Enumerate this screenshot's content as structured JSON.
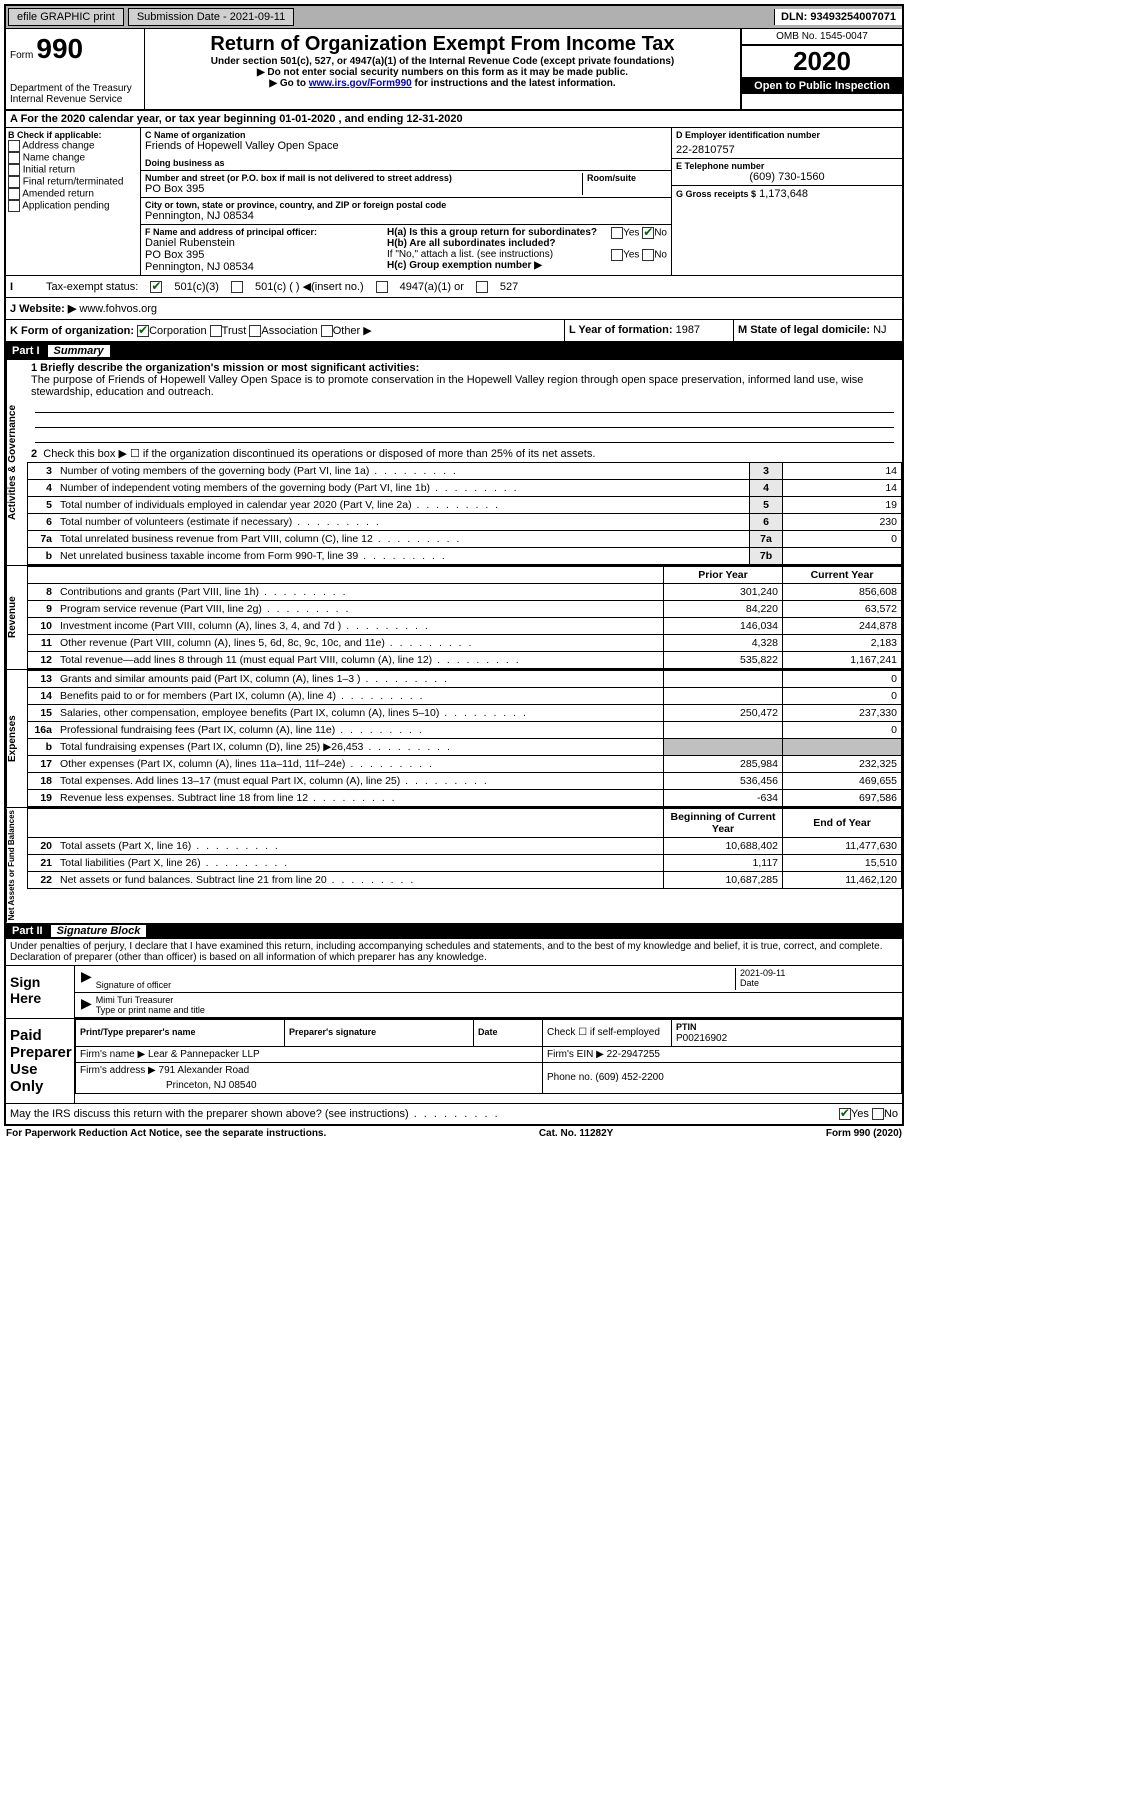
{
  "topbar": {
    "efile": "efile GRAPHIC print",
    "submission_label": "Submission Date - 2021-09-11",
    "dln": "DLN: 93493254007071"
  },
  "header": {
    "form_word": "Form",
    "form_num": "990",
    "dept": "Department of the Treasury",
    "irs": "Internal Revenue Service",
    "title": "Return of Organization Exempt From Income Tax",
    "sub1": "Under section 501(c), 527, or 4947(a)(1) of the Internal Revenue Code (except private foundations)",
    "sub2": "▶ Do not enter social security numbers on this form as it may be made public.",
    "sub3_pre": "▶ Go to ",
    "sub3_link": "www.irs.gov/Form990",
    "sub3_post": " for instructions and the latest information.",
    "omb": "OMB No. 1545-0047",
    "year": "2020",
    "open": "Open to Public Inspection"
  },
  "sectionA": "A For the 2020 calendar year, or tax year beginning 01-01-2020   , and ending 12-31-2020",
  "colB": {
    "title": "B Check if applicable:",
    "opts": [
      "Address change",
      "Name change",
      "Initial return",
      "Final return/terminated",
      "Amended return",
      "Application pending"
    ]
  },
  "colC": {
    "name_label": "C Name of organization",
    "name": "Friends of Hopewell Valley Open Space",
    "dba_label": "Doing business as",
    "addr_label": "Number and street (or P.O. box if mail is not delivered to street address)",
    "room_label": "Room/suite",
    "addr": "PO Box 395",
    "city_label": "City or town, state or province, country, and ZIP or foreign postal code",
    "city": "Pennington, NJ  08534",
    "f_label": "F Name and address of principal officer:",
    "f_name": "Daniel Rubenstein",
    "f_addr1": "PO Box 395",
    "f_addr2": "Pennington, NJ  08534"
  },
  "colD": {
    "d_label": "D Employer identification number",
    "ein": "22-2810757",
    "e_label": "E Telephone number",
    "phone": "(609) 730-1560",
    "g_label": "G Gross receipts $",
    "g_val": "1,173,648"
  },
  "H": {
    "ha": "H(a)  Is this a group return for subordinates?",
    "hb": "H(b)  Are all subordinates included?",
    "hb_note": "If \"No,\" attach a list. (see instructions)",
    "hc": "H(c)  Group exemption number ▶",
    "yes": "Yes",
    "no": "No"
  },
  "I": {
    "label": "Tax-exempt status:",
    "a": "501(c)(3)",
    "b": "501(c) (  ) ◀(insert no.)",
    "c": "4947(a)(1) or",
    "d": "527"
  },
  "J": {
    "label": "J   Website: ▶",
    "val": "www.fohvos.org"
  },
  "K": {
    "label": "K Form of organization:",
    "opts": [
      "Corporation",
      "Trust",
      "Association",
      "Other ▶"
    ]
  },
  "L": {
    "label": "L Year of formation:",
    "val": "1987"
  },
  "M": {
    "label": "M State of legal domicile:",
    "val": "NJ"
  },
  "part1": {
    "num": "Part I",
    "title": "Summary"
  },
  "summary": {
    "l1_label": "1  Briefly describe the organization's mission or most significant activities:",
    "l1_text": "The purpose of Friends of Hopewell Valley Open Space is to promote conservation in the Hopewell Valley region through open space preservation, informed land use, wise stewardship, education and outreach.",
    "l2": "Check this box ▶ ☐  if the organization discontinued its operations or disposed of more than 25% of its net assets.",
    "lines": [
      {
        "n": "3",
        "d": "Number of voting members of the governing body (Part VI, line 1a)",
        "b": "3",
        "v": "14"
      },
      {
        "n": "4",
        "d": "Number of independent voting members of the governing body (Part VI, line 1b)",
        "b": "4",
        "v": "14"
      },
      {
        "n": "5",
        "d": "Total number of individuals employed in calendar year 2020 (Part V, line 2a)",
        "b": "5",
        "v": "19"
      },
      {
        "n": "6",
        "d": "Total number of volunteers (estimate if necessary)",
        "b": "6",
        "v": "230"
      },
      {
        "n": "7a",
        "d": "Total unrelated business revenue from Part VIII, column (C), line 12",
        "b": "7a",
        "v": "0"
      },
      {
        "n": "b",
        "d": "Net unrelated business taxable income from Form 990-T, line 39",
        "b": "7b",
        "v": ""
      }
    ],
    "hdr_prior": "Prior Year",
    "hdr_curr": "Current Year",
    "revenue": [
      {
        "n": "8",
        "d": "Contributions and grants (Part VIII, line 1h)",
        "p": "301,240",
        "c": "856,608"
      },
      {
        "n": "9",
        "d": "Program service revenue (Part VIII, line 2g)",
        "p": "84,220",
        "c": "63,572"
      },
      {
        "n": "10",
        "d": "Investment income (Part VIII, column (A), lines 3, 4, and 7d )",
        "p": "146,034",
        "c": "244,878"
      },
      {
        "n": "11",
        "d": "Other revenue (Part VIII, column (A), lines 5, 6d, 8c, 9c, 10c, and 11e)",
        "p": "4,328",
        "c": "2,183"
      },
      {
        "n": "12",
        "d": "Total revenue—add lines 8 through 11 (must equal Part VIII, column (A), line 12)",
        "p": "535,822",
        "c": "1,167,241"
      }
    ],
    "expenses": [
      {
        "n": "13",
        "d": "Grants and similar amounts paid (Part IX, column (A), lines 1–3 )",
        "p": "",
        "c": "0"
      },
      {
        "n": "14",
        "d": "Benefits paid to or for members (Part IX, column (A), line 4)",
        "p": "",
        "c": "0"
      },
      {
        "n": "15",
        "d": "Salaries, other compensation, employee benefits (Part IX, column (A), lines 5–10)",
        "p": "250,472",
        "c": "237,330"
      },
      {
        "n": "16a",
        "d": "Professional fundraising fees (Part IX, column (A), line 11e)",
        "p": "",
        "c": "0"
      },
      {
        "n": "b",
        "d": "Total fundraising expenses (Part IX, column (D), line 25) ▶26,453",
        "p": "shade",
        "c": "shade"
      },
      {
        "n": "17",
        "d": "Other expenses (Part IX, column (A), lines 11a–11d, 11f–24e)",
        "p": "285,984",
        "c": "232,325"
      },
      {
        "n": "18",
        "d": "Total expenses. Add lines 13–17 (must equal Part IX, column (A), line 25)",
        "p": "536,456",
        "c": "469,655"
      },
      {
        "n": "19",
        "d": "Revenue less expenses. Subtract line 18 from line 12",
        "p": "-634",
        "c": "697,586"
      }
    ],
    "hdr_beg": "Beginning of Current Year",
    "hdr_end": "End of Year",
    "net": [
      {
        "n": "20",
        "d": "Total assets (Part X, line 16)",
        "p": "10,688,402",
        "c": "11,477,630"
      },
      {
        "n": "21",
        "d": "Total liabilities (Part X, line 26)",
        "p": "1,117",
        "c": "15,510"
      },
      {
        "n": "22",
        "d": "Net assets or fund balances. Subtract line 21 from line 20",
        "p": "10,687,285",
        "c": "11,462,120"
      }
    ]
  },
  "part2": {
    "num": "Part II",
    "title": "Signature Block"
  },
  "sig": {
    "penalty": "Under penalties of perjury, I declare that I have examined this return, including accompanying schedules and statements, and to the best of my knowledge and belief, it is true, correct, and complete. Declaration of preparer (other than officer) is based on all information of which preparer has any knowledge.",
    "sign_here": "Sign Here",
    "sig_officer": "Signature of officer",
    "date_label": "Date",
    "date_val": "2021-09-11",
    "name_title": "Mimi Turi Treasurer",
    "type_label": "Type or print name and title",
    "paid": "Paid Preparer Use Only",
    "prep_name_label": "Print/Type preparer's name",
    "prep_sig_label": "Preparer's signature",
    "check_label": "Check ☐ if self-employed",
    "ptin_label": "PTIN",
    "ptin": "P00216902",
    "firm_name_label": "Firm's name   ▶",
    "firm_name": "Lear & Pannepacker LLP",
    "firm_ein_label": "Firm's EIN ▶",
    "firm_ein": "22-2947255",
    "firm_addr_label": "Firm's address ▶",
    "firm_addr1": "791 Alexander Road",
    "firm_addr2": "Princeton, NJ  08540",
    "phone_label": "Phone no.",
    "phone": "(609) 452-2200",
    "discuss": "May the IRS discuss this return with the preparer shown above? (see instructions)"
  },
  "footer": {
    "left": "For Paperwork Reduction Act Notice, see the separate instructions.",
    "mid": "Cat. No. 11282Y",
    "right": "Form 990 (2020)"
  }
}
